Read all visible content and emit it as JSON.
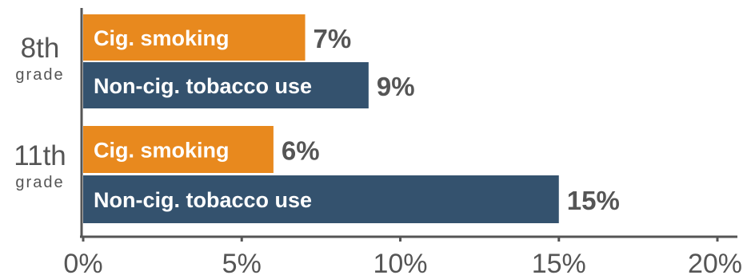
{
  "chart_data": {
    "type": "bar",
    "orientation": "horizontal",
    "groups": [
      {
        "label": "8th",
        "sublabel": "grade",
        "bars": [
          {
            "label": "Cig. smoking",
            "value": 7,
            "value_label": "7%",
            "color": "#E8891E"
          },
          {
            "label": "Non-cig. tobacco use",
            "value": 9,
            "value_label": "9%",
            "color": "#34526E"
          }
        ]
      },
      {
        "label": "11th",
        "sublabel": "grade",
        "bars": [
          {
            "label": "Cig. smoking",
            "value": 6,
            "value_label": "6%",
            "color": "#E8891E"
          },
          {
            "label": "Non-cig. tobacco use",
            "value": 15,
            "value_label": "15%",
            "color": "#34526E"
          }
        ]
      }
    ],
    "x_ticks": [
      {
        "value": 0,
        "label": "0%"
      },
      {
        "value": 5,
        "label": "5%"
      },
      {
        "value": 10,
        "label": "10%"
      },
      {
        "value": 15,
        "label": "15%"
      },
      {
        "value": 20,
        "label": "20%"
      }
    ],
    "xlim": [
      0,
      20
    ],
    "grid": false
  }
}
